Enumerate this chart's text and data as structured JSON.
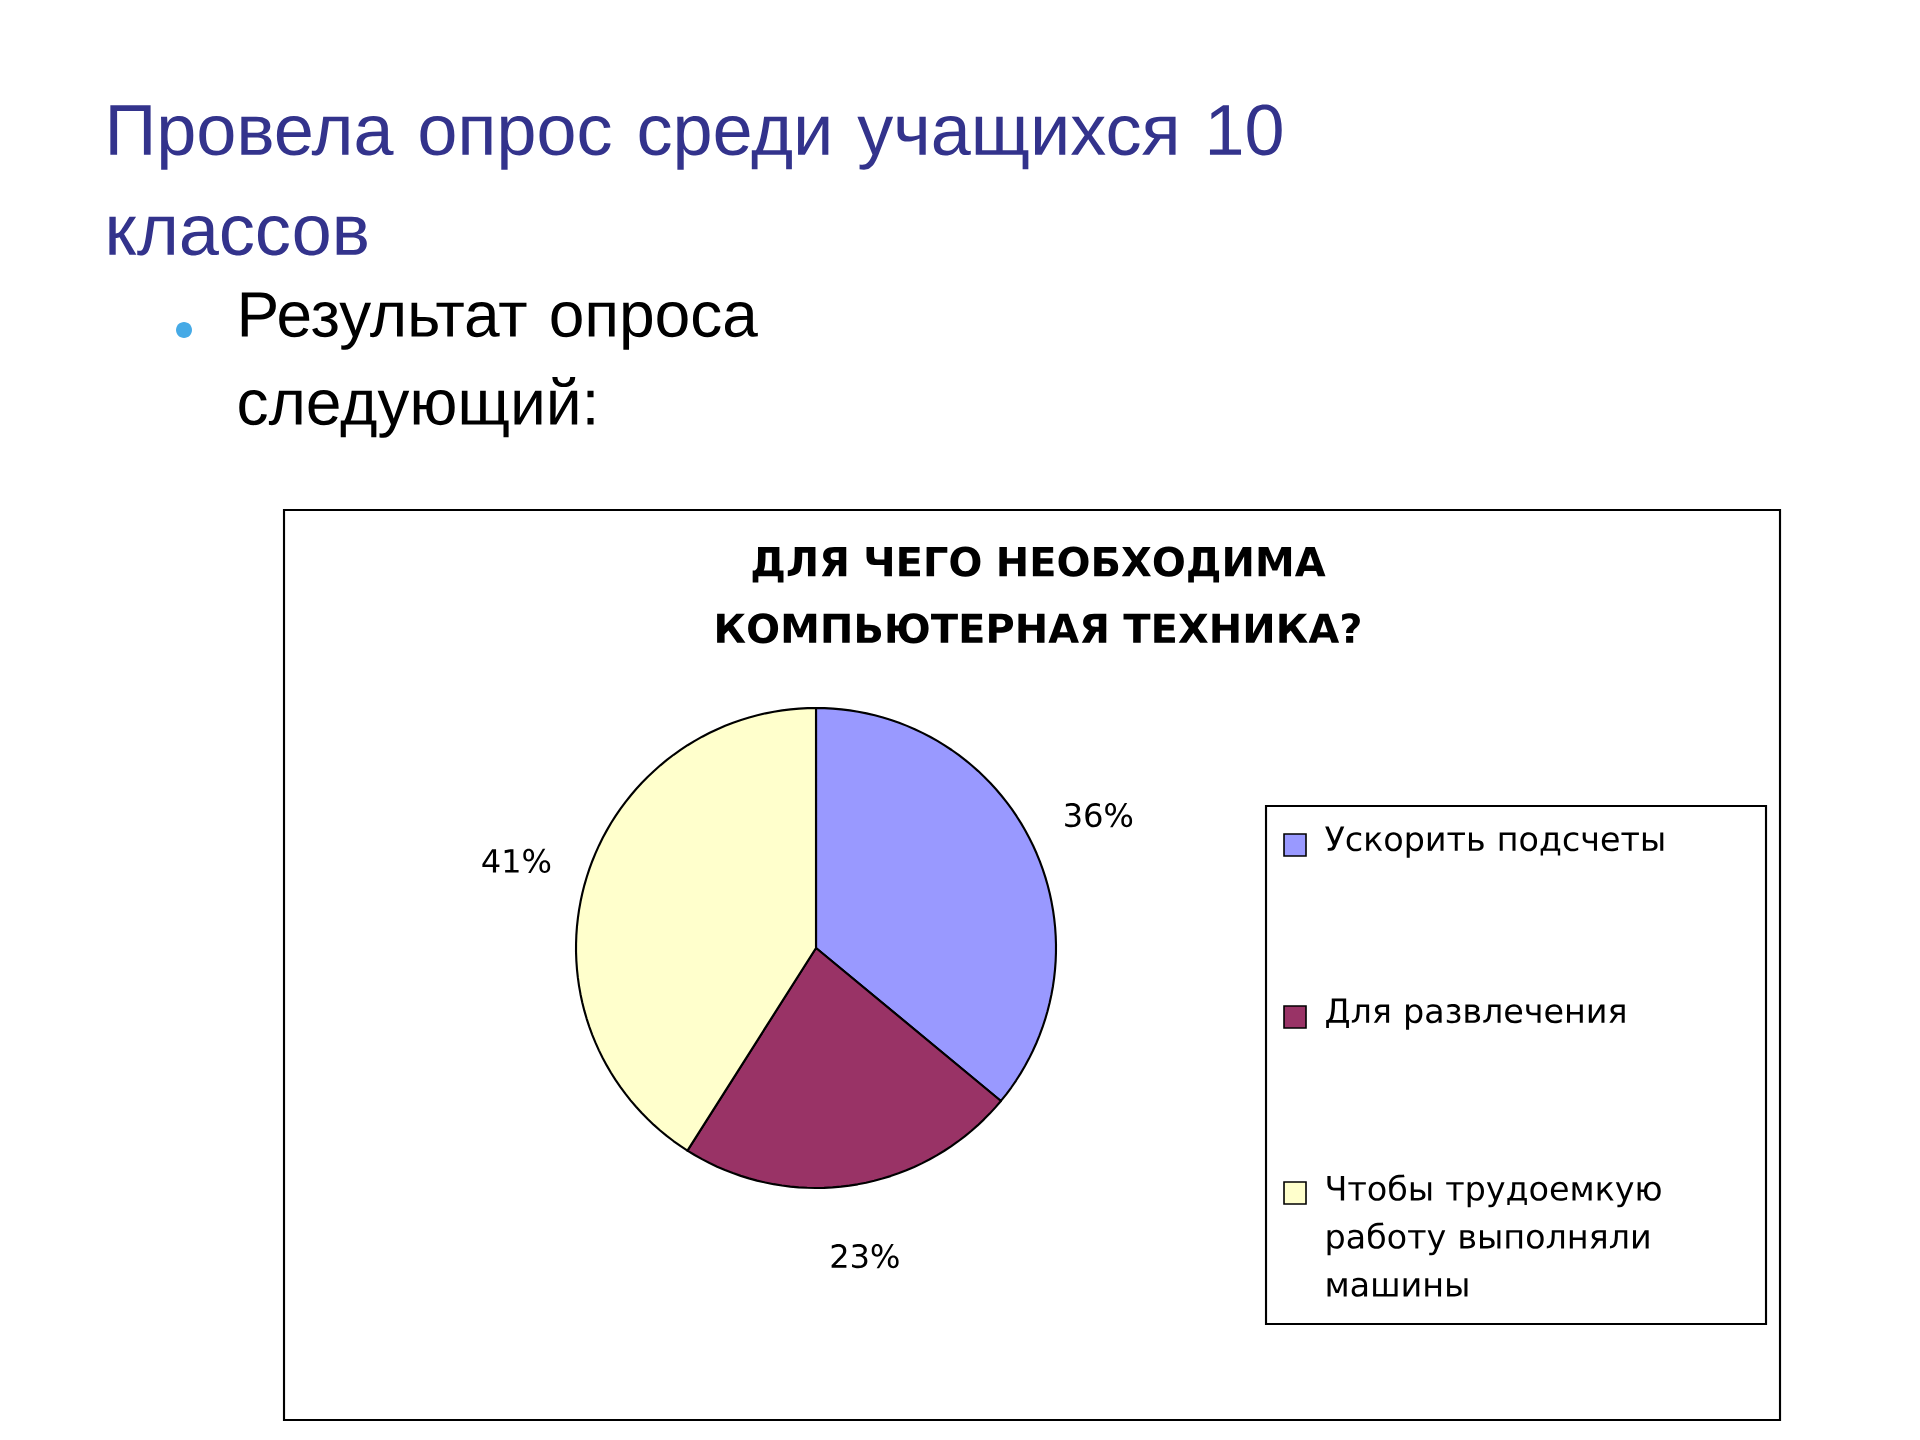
{
  "chart_data": {
    "type": "pie",
    "title": "Провела опрос среди учащихся 10 классов",
    "subtitle": "Результат опроса следующий:",
    "annotations": [
      "ДЛЯ ЧЕГО НЕОБХОДИМА КОМПЬЮТЕРНАЯ ТЕХНИКА?"
    ],
    "categories": [
      "Ускорить подсчеты",
      "Для развлечения",
      "Чтобы трудоемкую работу выполняли машины"
    ],
    "values": [
      36,
      23,
      41
    ],
    "colors": [
      "#9999ff",
      "#993366",
      "#ffffcc"
    ],
    "value_labels": [
      "36%",
      "23%",
      "41%"
    ],
    "legend": "right"
  }
}
